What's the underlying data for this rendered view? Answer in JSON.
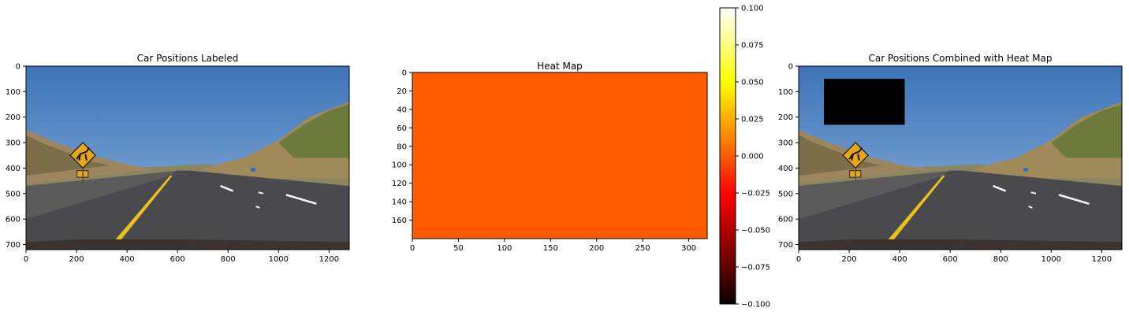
{
  "chart_data": [
    {
      "type": "image",
      "title": "Car Positions Labeled",
      "xlim": [
        0,
        1280
      ],
      "ylim": [
        720,
        0
      ],
      "xticks": [
        0,
        200,
        400,
        600,
        800,
        1000,
        1200
      ],
      "yticks": [
        0,
        100,
        200,
        300,
        400,
        500,
        600,
        700
      ],
      "xtick_labels": [
        "0",
        "200",
        "400",
        "600",
        "800",
        "1000",
        "1200"
      ],
      "ytick_labels": [
        "0",
        "100",
        "200",
        "300",
        "400",
        "500",
        "600",
        "700"
      ]
    },
    {
      "type": "heatmap",
      "title": "Heat Map",
      "xlim": [
        0,
        320
      ],
      "ylim": [
        180,
        0
      ],
      "xticks": [
        0,
        50,
        100,
        150,
        200,
        250,
        300
      ],
      "yticks": [
        0,
        20,
        40,
        60,
        80,
        100,
        120,
        140,
        160
      ],
      "xtick_labels": [
        "0",
        "50",
        "100",
        "150",
        "200",
        "250",
        "300"
      ],
      "ytick_labels": [
        "0",
        "20",
        "40",
        "60",
        "80",
        "100",
        "120",
        "140",
        "160"
      ],
      "fill_value": 0.0,
      "fill_color": "#ff5c00",
      "colormap": "hot",
      "colorbar": {
        "range": [
          -0.1,
          0.1
        ],
        "ticks": [
          -0.1,
          -0.075,
          -0.05,
          -0.025,
          0.0,
          0.025,
          0.05,
          0.075,
          0.1
        ],
        "tick_labels": [
          "−0.100",
          "−0.075",
          "−0.050",
          "−0.025",
          "0.000",
          "0.025",
          "0.050",
          "0.075",
          "0.100"
        ]
      }
    },
    {
      "type": "image",
      "title": "Car Positions Combined with Heat Map",
      "xlim": [
        0,
        1280
      ],
      "ylim": [
        720,
        0
      ],
      "xticks": [
        0,
        200,
        400,
        600,
        800,
        1000,
        1200
      ],
      "yticks": [
        0,
        100,
        200,
        300,
        400,
        500,
        600,
        700
      ],
      "xtick_labels": [
        "0",
        "200",
        "400",
        "600",
        "800",
        "1000",
        "1200"
      ],
      "ytick_labels": [
        "0",
        "100",
        "200",
        "300",
        "400",
        "500",
        "600",
        "700"
      ],
      "overlay_box": {
        "x0": 100,
        "y0": 50,
        "x1": 420,
        "y1": 230,
        "color": "#000000"
      }
    }
  ]
}
